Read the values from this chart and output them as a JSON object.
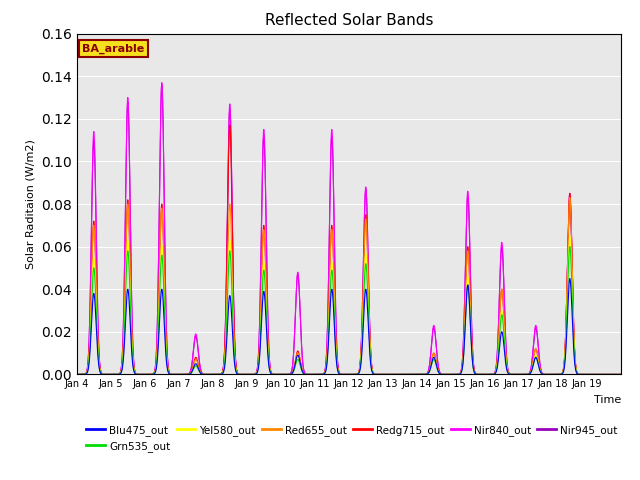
{
  "title": "Reflected Solar Bands",
  "xlabel": "Time",
  "ylabel": "Solar Raditaion (W/m2)",
  "ylim": [
    0,
    0.16
  ],
  "annotation": "BA_arable",
  "plot_bg_color": "#e8e8e8",
  "fig_bg_color": "#ffffff",
  "series": {
    "Blu475_out": {
      "color": "#0000ff",
      "lw": 0.8
    },
    "Grn535_out": {
      "color": "#00dd00",
      "lw": 0.8
    },
    "Yel580_out": {
      "color": "#ffff00",
      "lw": 0.8
    },
    "Red655_out": {
      "color": "#ff8800",
      "lw": 0.8
    },
    "Redg715_out": {
      "color": "#ff0000",
      "lw": 0.8
    },
    "Nir840_out": {
      "color": "#ff00ff",
      "lw": 0.8
    },
    "Nir945_out": {
      "color": "#9900bb",
      "lw": 0.8
    }
  },
  "xtick_labels": [
    "Jan 4",
    "Jan 5",
    "Jan 6",
    "Jan 7",
    "Jan 8",
    "Jan 9",
    "Jan 10",
    "Jan 11",
    "Jan 12",
    "Jan 13",
    "Jan 14",
    "Jan 15",
    "Jan 16",
    "Jan 17",
    "Jan 18",
    "Jan 19"
  ],
  "n_days": 16,
  "pts_per_day": 288,
  "day_peaks": {
    "Nir840_out": [
      0.114,
      0.13,
      0.137,
      0.019,
      0.127,
      0.115,
      0.048,
      0.115,
      0.088,
      0.0,
      0.023,
      0.086,
      0.062,
      0.023,
      0.085,
      0.0
    ],
    "Blu475_out": [
      0.038,
      0.04,
      0.04,
      0.005,
      0.037,
      0.039,
      0.009,
      0.04,
      0.04,
      0.0,
      0.008,
      0.042,
      0.02,
      0.008,
      0.045,
      0.0
    ],
    "Red655_out": [
      0.07,
      0.08,
      0.078,
      0.007,
      0.08,
      0.068,
      0.01,
      0.068,
      0.073,
      0.0,
      0.01,
      0.058,
      0.04,
      0.012,
      0.083,
      0.0
    ],
    "Redg715_out": [
      0.072,
      0.082,
      0.08,
      0.008,
      0.117,
      0.07,
      0.011,
      0.07,
      0.075,
      0.0,
      0.01,
      0.06,
      0.04,
      0.012,
      0.085,
      0.0
    ],
    "Nir945_out": [
      0.11,
      0.128,
      0.136,
      0.018,
      0.125,
      0.112,
      0.047,
      0.112,
      0.087,
      0.0,
      0.022,
      0.084,
      0.06,
      0.022,
      0.083,
      0.0
    ],
    "Grn535_out": [
      0.05,
      0.058,
      0.056,
      0.004,
      0.058,
      0.049,
      0.007,
      0.049,
      0.052,
      0.0,
      0.007,
      0.042,
      0.028,
      0.008,
      0.06,
      0.0
    ],
    "Yel580_out": [
      0.055,
      0.063,
      0.061,
      0.005,
      0.063,
      0.053,
      0.008,
      0.053,
      0.057,
      0.0,
      0.008,
      0.046,
      0.03,
      0.009,
      0.065,
      0.0
    ]
  },
  "legend_order": [
    "Blu475_out",
    "Grn535_out",
    "Yel580_out",
    "Red655_out",
    "Redg715_out",
    "Nir840_out",
    "Nir945_out"
  ]
}
